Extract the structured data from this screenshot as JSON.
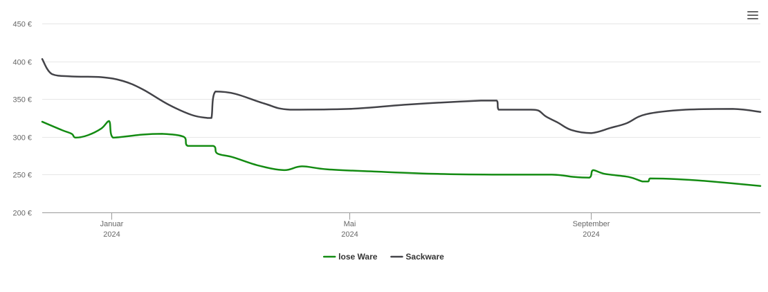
{
  "menu": {
    "icon": "hamburger-menu-icon"
  },
  "chart_data": {
    "type": "line",
    "x_ticks": [
      {
        "date": "2024-01-01",
        "month": "Januar",
        "year": "2024"
      },
      {
        "date": "2024-05-01",
        "month": "Mai",
        "year": "2024"
      },
      {
        "date": "2024-09-01",
        "month": "September",
        "year": "2024"
      }
    ],
    "y_ticks": [
      "200 €",
      "250 €",
      "300 €",
      "350 €",
      "400 €",
      "450 €"
    ],
    "y_tick_values": [
      200,
      250,
      300,
      350,
      400,
      450
    ],
    "ylim": [
      200,
      450
    ],
    "xlim": [
      "2023-11-27",
      "2024-11-26"
    ],
    "grid": true,
    "legend_position": "bottom-center",
    "series": [
      {
        "name": "lose Ware",
        "color": "#138b12",
        "points": [
          [
            "2023-11-27",
            320
          ],
          [
            "2023-12-07",
            309
          ],
          [
            "2023-12-12",
            304
          ],
          [
            "2023-12-14",
            299
          ],
          [
            "2023-12-20",
            302
          ],
          [
            "2023-12-27",
            311
          ],
          [
            "2023-12-31",
            321
          ],
          [
            "2024-01-02",
            299
          ],
          [
            "2024-01-17",
            303
          ],
          [
            "2024-01-27",
            304
          ],
          [
            "2024-02-07",
            300
          ],
          [
            "2024-02-09",
            288
          ],
          [
            "2024-02-22",
            288
          ],
          [
            "2024-02-24",
            278
          ],
          [
            "2024-03-03",
            273
          ],
          [
            "2024-03-16",
            262
          ],
          [
            "2024-03-29",
            256
          ],
          [
            "2024-04-07",
            261
          ],
          [
            "2024-04-20",
            257
          ],
          [
            "2024-05-15",
            254
          ],
          [
            "2024-06-15",
            251
          ],
          [
            "2024-07-15",
            250
          ],
          [
            "2024-08-12",
            250
          ],
          [
            "2024-08-23",
            247
          ],
          [
            "2024-08-31",
            246
          ],
          [
            "2024-09-02",
            256
          ],
          [
            "2024-09-08",
            251
          ],
          [
            "2024-09-20",
            247
          ],
          [
            "2024-09-27",
            241
          ],
          [
            "2024-09-30",
            241
          ],
          [
            "2024-10-01",
            245
          ],
          [
            "2024-10-15",
            244
          ],
          [
            "2024-11-01",
            241
          ],
          [
            "2024-11-26",
            235
          ]
        ]
      },
      {
        "name": "Sackware",
        "color": "#434348",
        "points": [
          [
            "2023-11-27",
            403
          ],
          [
            "2023-12-02",
            383
          ],
          [
            "2023-12-12",
            380
          ],
          [
            "2023-12-27",
            379
          ],
          [
            "2024-01-07",
            374
          ],
          [
            "2024-01-17",
            363
          ],
          [
            "2024-01-30",
            343
          ],
          [
            "2024-02-11",
            329
          ],
          [
            "2024-02-19",
            325
          ],
          [
            "2024-02-21",
            325
          ],
          [
            "2024-02-23",
            360
          ],
          [
            "2024-03-04",
            357
          ],
          [
            "2024-03-19",
            344
          ],
          [
            "2024-04-01",
            336
          ],
          [
            "2024-05-01",
            337
          ],
          [
            "2024-06-01",
            343
          ],
          [
            "2024-07-07",
            348
          ],
          [
            "2024-07-15",
            348
          ],
          [
            "2024-07-16",
            336
          ],
          [
            "2024-07-31",
            336
          ],
          [
            "2024-08-05",
            335
          ],
          [
            "2024-08-09",
            327
          ],
          [
            "2024-08-15",
            319
          ],
          [
            "2024-08-22",
            309
          ],
          [
            "2024-09-01",
            305
          ],
          [
            "2024-09-11",
            312
          ],
          [
            "2024-09-19",
            318
          ],
          [
            "2024-09-29",
            330
          ],
          [
            "2024-10-19",
            336
          ],
          [
            "2024-11-12",
            337
          ],
          [
            "2024-11-26",
            333
          ]
        ]
      }
    ]
  }
}
